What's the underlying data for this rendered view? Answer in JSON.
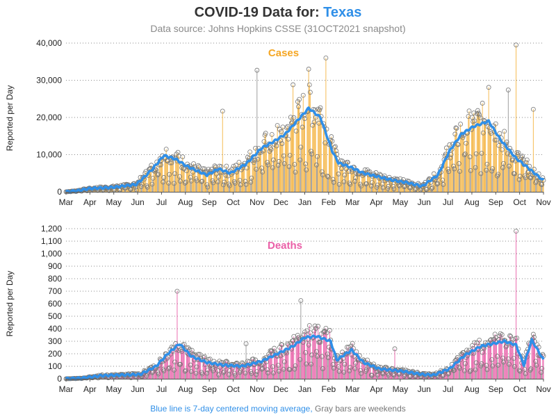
{
  "header": {
    "title_prefix": "COVID-19 Data for: ",
    "title_state": "Texas",
    "subtitle": "Data source: Johns Hopkins CSSE (31OCT2021 snapshot)"
  },
  "footnote": {
    "avg_note": "Blue line is 7-day centered moving average,",
    "weekend_note": "Gray bars are weekends"
  },
  "colors": {
    "title_highlight": "#2f8fe8",
    "moving_average": "#2f8fe8",
    "cases_bars": "#f5b84c",
    "cases_label": "#f5a623",
    "deaths_bars": "#ea68ad",
    "deaths_label": "#ea5fa7",
    "weekend_bars": "#9a9a9a",
    "marker_edge": "#777777"
  },
  "chart_data": [
    {
      "type": "bar",
      "panel_label": "Cases",
      "ylabel": "Reported per Day",
      "ylim": [
        0,
        40000
      ],
      "yticks": [
        "0",
        "10,000",
        "20,000",
        "30,000",
        "40,000"
      ],
      "x_tick_labels": [
        "Mar",
        "Apr",
        "May",
        "Jun",
        "Jul",
        "Aug",
        "Sep",
        "Oct",
        "Nov",
        "Dec",
        "Jan",
        "Feb",
        "Mar",
        "Apr",
        "May",
        "Jun",
        "Jul",
        "Aug",
        "Sep",
        "Oct",
        "Nov"
      ],
      "grid": "horizontal dotted",
      "moving_average_anchors": [
        [
          0,
          0
        ],
        [
          15,
          300
        ],
        [
          30,
          900
        ],
        [
          60,
          1200
        ],
        [
          90,
          2000
        ],
        [
          110,
          6000
        ],
        [
          125,
          9800
        ],
        [
          140,
          8800
        ],
        [
          155,
          6800
        ],
        [
          180,
          4500
        ],
        [
          195,
          6200
        ],
        [
          210,
          5000
        ],
        [
          230,
          7500
        ],
        [
          250,
          11800
        ],
        [
          265,
          13500
        ],
        [
          280,
          15500
        ],
        [
          295,
          19000
        ],
        [
          310,
          22500
        ],
        [
          325,
          20000
        ],
        [
          340,
          11000
        ],
        [
          348,
          7800
        ],
        [
          365,
          6500
        ],
        [
          380,
          5000
        ],
        [
          400,
          4000
        ],
        [
          420,
          3000
        ],
        [
          435,
          2500
        ],
        [
          455,
          1500
        ],
        [
          475,
          4500
        ],
        [
          490,
          11000
        ],
        [
          505,
          15500
        ],
        [
          520,
          17500
        ],
        [
          540,
          19000
        ],
        [
          555,
          14000
        ],
        [
          575,
          9000
        ],
        [
          590,
          6500
        ],
        [
          610,
          3000
        ]
      ],
      "spikes": [
        [
          244,
          32700
        ],
        [
          290,
          28800
        ],
        [
          310,
          33000
        ],
        [
          332,
          36000
        ],
        [
          200,
          21700
        ],
        [
          575,
          39500
        ],
        [
          565,
          27400
        ],
        [
          540,
          28100
        ],
        [
          597,
          22200
        ],
        [
          480,
          6800
        ]
      ]
    },
    {
      "type": "bar",
      "panel_label": "Deaths",
      "ylabel": "Reported per Day",
      "ylim": [
        0,
        1200
      ],
      "yticks": [
        "0",
        "100",
        "200",
        "300",
        "400",
        "500",
        "600",
        "700",
        "800",
        "900",
        "1,000",
        "1,100",
        "1,200"
      ],
      "x_tick_labels": [
        "Mar",
        "Apr",
        "May",
        "Jun",
        "Jul",
        "Aug",
        "Sep",
        "Oct",
        "Nov",
        "Dec",
        "Jan",
        "Feb",
        "Mar",
        "Apr",
        "May",
        "Jun",
        "Jul",
        "Aug",
        "Sep",
        "Oct",
        "Nov"
      ],
      "grid": "horizontal dotted",
      "moving_average_anchors": [
        [
          0,
          0
        ],
        [
          20,
          5
        ],
        [
          45,
          25
        ],
        [
          70,
          30
        ],
        [
          95,
          35
        ],
        [
          115,
          100
        ],
        [
          130,
          200
        ],
        [
          145,
          280
        ],
        [
          160,
          180
        ],
        [
          180,
          130
        ],
        [
          200,
          110
        ],
        [
          225,
          100
        ],
        [
          250,
          140
        ],
        [
          270,
          200
        ],
        [
          290,
          260
        ],
        [
          305,
          330
        ],
        [
          320,
          340
        ],
        [
          338,
          300
        ],
        [
          346,
          150
        ],
        [
          355,
          190
        ],
        [
          365,
          230
        ],
        [
          380,
          130
        ],
        [
          400,
          80
        ],
        [
          430,
          60
        ],
        [
          455,
          35
        ],
        [
          470,
          30
        ],
        [
          490,
          80
        ],
        [
          510,
          190
        ],
        [
          530,
          260
        ],
        [
          545,
          280
        ],
        [
          560,
          300
        ],
        [
          575,
          270
        ],
        [
          585,
          110
        ],
        [
          595,
          310
        ],
        [
          610,
          150
        ]
      ],
      "spikes": [
        [
          142,
          700
        ],
        [
          300,
          625
        ],
        [
          575,
          1180
        ],
        [
          230,
          280
        ],
        [
          420,
          240
        ]
      ]
    }
  ]
}
